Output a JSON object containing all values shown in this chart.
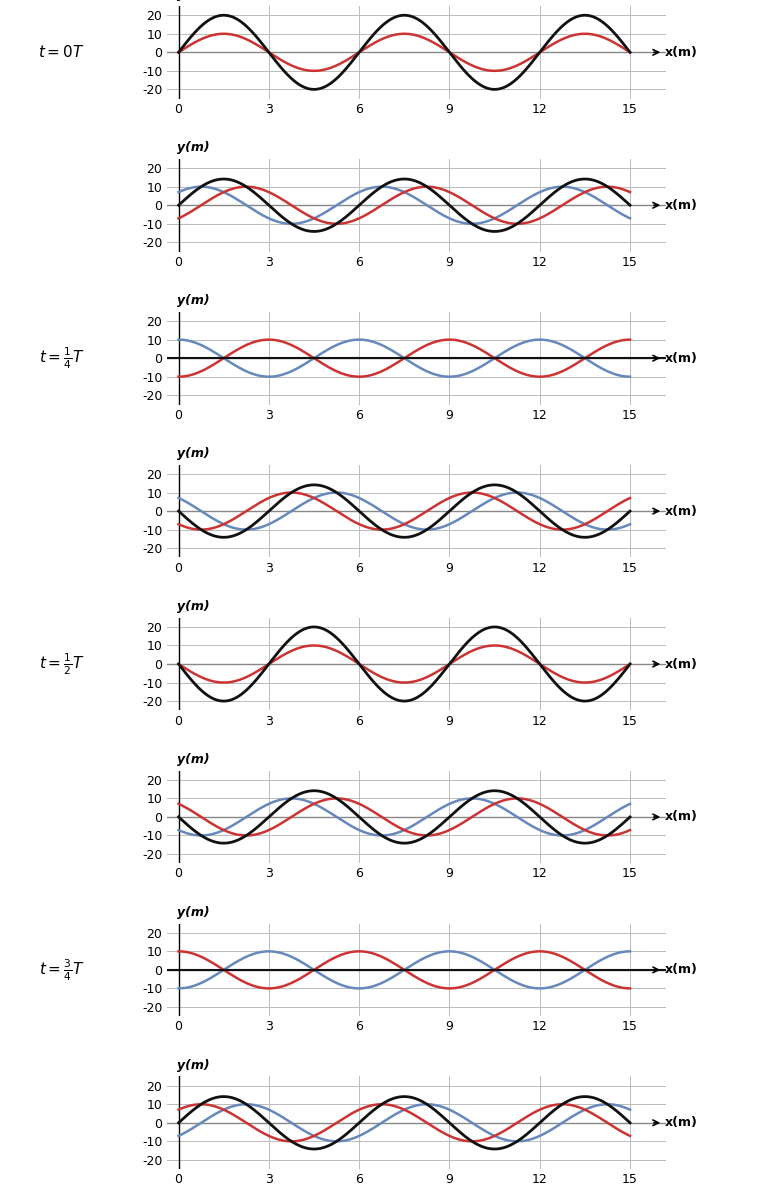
{
  "amplitude": 10,
  "wavelength": 6,
  "x_max": 15,
  "x_ticks": [
    0,
    3,
    6,
    9,
    12,
    15
  ],
  "y_lim": [
    -25,
    25
  ],
  "y_ticks": [
    -20,
    -10,
    0,
    10,
    20
  ],
  "num_plots": 8,
  "time_fractions": [
    0,
    0.125,
    0.25,
    0.375,
    0.5,
    0.625,
    0.75,
    0.875
  ],
  "color_wave1": "#cc3333",
  "color_wave2": "#6688bb",
  "color_resultant": "#111111",
  "background": "#ffffff",
  "grid_color": "#bbbbbb",
  "zero_line_color": "#888888",
  "fig_width": 7.57,
  "fig_height": 11.93,
  "label_indices": [
    0,
    2,
    4,
    6
  ],
  "label_texts": [
    "$t = 0T$",
    "$t = \\frac{1}{4}T$",
    "$t = \\frac{1}{2}T$",
    "$t = \\frac{3}{4}T$"
  ]
}
